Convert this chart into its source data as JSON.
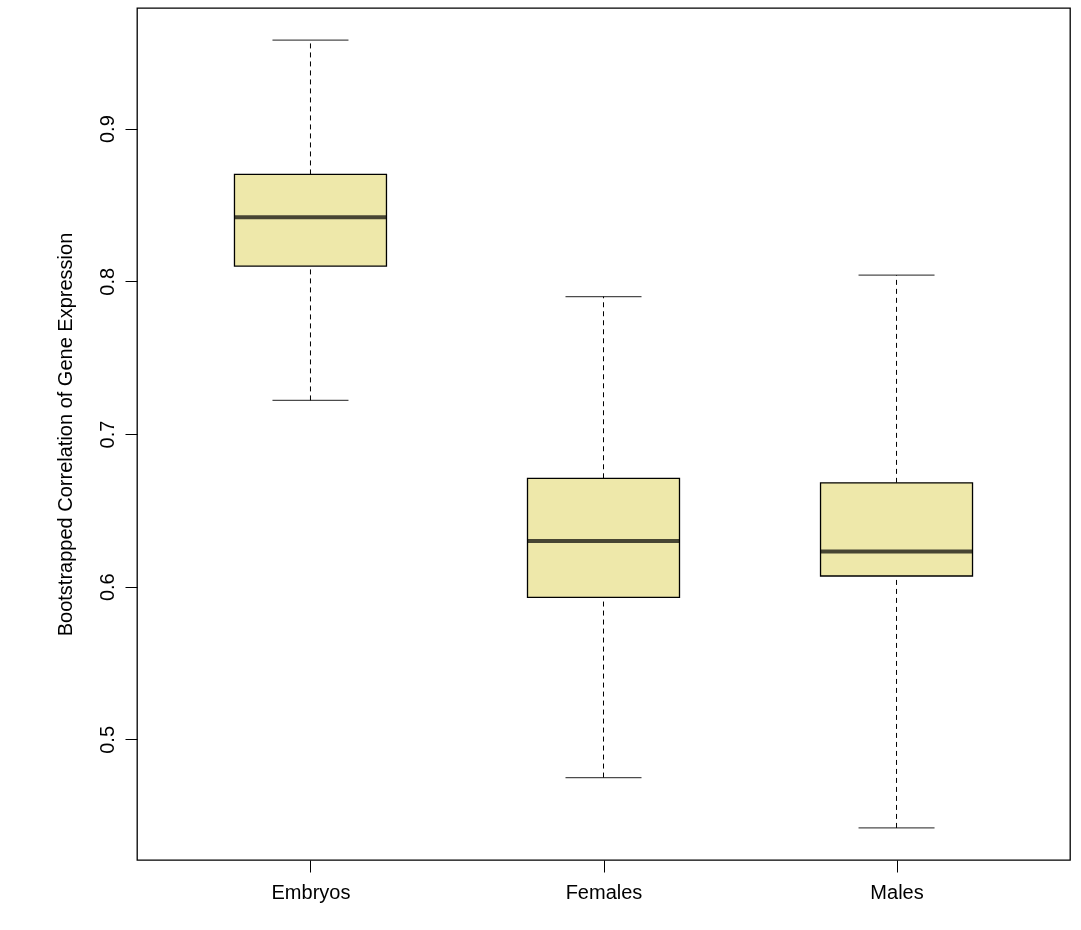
{
  "chart_data": {
    "type": "box",
    "ylabel": "Bootstrapped Correlation of Gene Expression",
    "categories": [
      "Embryos",
      "Females",
      "Males"
    ],
    "color": "#eee8aa",
    "ylim": [
      0.421,
      0.979
    ],
    "yticks": [
      0.5,
      0.6,
      0.7,
      0.8,
      0.9
    ],
    "grid": false,
    "boxes": [
      {
        "low": 0.722,
        "q1": 0.81,
        "median": 0.842,
        "q3": 0.87,
        "high": 0.958
      },
      {
        "low": 0.475,
        "q1": 0.593,
        "median": 0.63,
        "q3": 0.671,
        "high": 0.79
      },
      {
        "low": 0.442,
        "q1": 0.607,
        "median": 0.623,
        "q3": 0.668,
        "high": 0.804
      }
    ]
  }
}
